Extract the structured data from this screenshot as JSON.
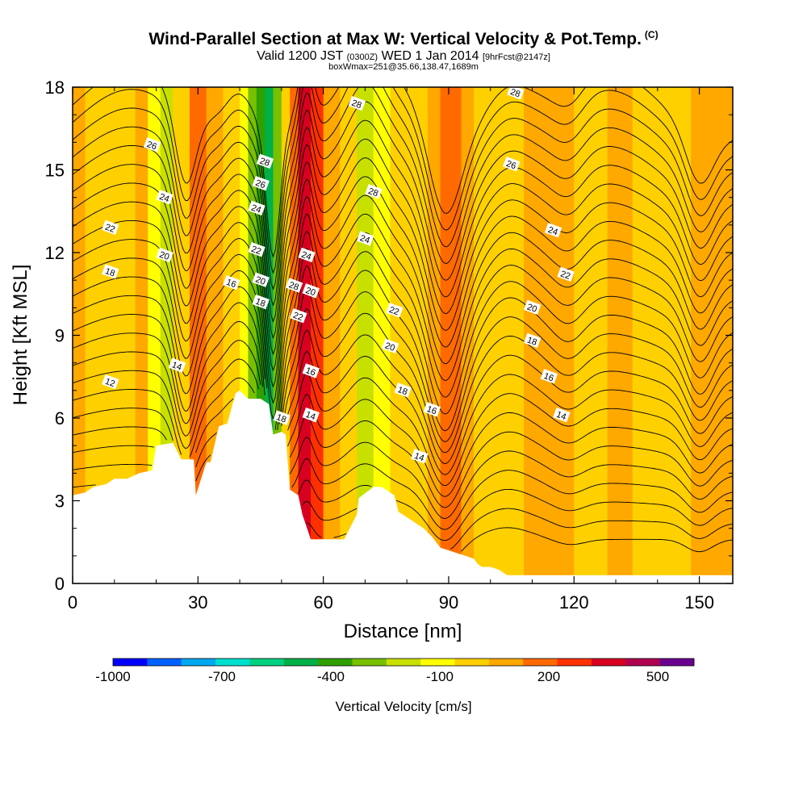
{
  "header": {
    "title": "Wind-Parallel Section at Max W: Vertical Velocity & Pot.Temp.",
    "copyright": "(C)",
    "valid_prefix": "Valid 1200 JST",
    "valid_utc": "(0300Z)",
    "valid_date": "WED 1 Jan 2014",
    "forecast": "[9hrFcst@2147z]",
    "boxwmax": "boxWmax=251@35.66,138.47,1689m"
  },
  "chart_data": {
    "type": "heatmap",
    "xlabel": "Distance [nm]",
    "ylabel": "Height [Kft MSL]",
    "xlim": [
      0,
      158
    ],
    "ylim": [
      0,
      18
    ],
    "xticks": [
      0,
      30,
      60,
      90,
      120,
      150
    ],
    "yticks": [
      0,
      3,
      6,
      9,
      12,
      15,
      18
    ],
    "colorbar": {
      "label": "Vertical Velocity [cm/s]",
      "tick_labels": [
        "-1000",
        "-700",
        "-400",
        "-100",
        "200",
        "500"
      ],
      "tick_values": [
        -1000,
        -700,
        -400,
        -100,
        200,
        500
      ],
      "bins": [
        -1000,
        -900,
        -800,
        -700,
        -600,
        -500,
        -400,
        -300,
        -200,
        -100,
        0,
        100,
        200,
        300,
        400,
        500,
        600
      ],
      "colors": [
        "#0000ff",
        "#0060ff",
        "#00a8f0",
        "#00e0d0",
        "#00d080",
        "#00b048",
        "#30a000",
        "#78c000",
        "#c8e000",
        "#ffff00",
        "#ffd000",
        "#ffa800",
        "#ff6a00",
        "#ff3000",
        "#d80020",
        "#b00050",
        "#6a0090"
      ]
    },
    "terrain": {
      "x": [
        0,
        3,
        5,
        8,
        10,
        13,
        16,
        19,
        20,
        24,
        26,
        29,
        29.5,
        32,
        33,
        35,
        37,
        39,
        40,
        42,
        43,
        45,
        47,
        48,
        50,
        51,
        52,
        54,
        55,
        57,
        57.5,
        61,
        65,
        68,
        68.5,
        72,
        74,
        77,
        78,
        80,
        82,
        84,
        86,
        88,
        92,
        94,
        96,
        97,
        98,
        100,
        102,
        104,
        106,
        108,
        110,
        112,
        114,
        116,
        118,
        120,
        122,
        124,
        126,
        128,
        130,
        132,
        134,
        136,
        140,
        144,
        148,
        152,
        156,
        158
      ],
      "y": [
        3.2,
        3.3,
        3.5,
        3.6,
        3.8,
        3.8,
        4.0,
        4.1,
        5.0,
        5.1,
        4.5,
        4.5,
        3.2,
        4.4,
        4.4,
        5.7,
        5.8,
        6.9,
        7.0,
        6.7,
        6.7,
        6.7,
        6.5,
        5.4,
        5.5,
        5.4,
        3.4,
        3.2,
        2.5,
        1.6,
        1.6,
        1.6,
        1.6,
        2.5,
        3.1,
        3.5,
        3.5,
        3.2,
        2.6,
        2.4,
        2.2,
        2.0,
        1.7,
        1.3,
        1.1,
        1.0,
        0.9,
        0.7,
        0.6,
        0.6,
        0.5,
        0.3,
        0.3,
        0.3,
        0.3,
        0.3,
        0.3,
        0.3,
        0.3,
        0.3,
        0.3,
        0.3,
        0.3,
        0.3,
        0.3,
        0.3,
        0.3,
        0.3,
        0.3,
        0.3,
        0.3,
        0.3,
        0.3,
        0.3
      ]
    },
    "vertical_velocity_bands": [
      {
        "x_start": 0,
        "x_end": 3,
        "value": 150
      },
      {
        "x_start": 3,
        "x_end": 15,
        "value": 50
      },
      {
        "x_start": 15,
        "x_end": 18,
        "value": 120
      },
      {
        "x_start": 18,
        "x_end": 21,
        "value": -50
      },
      {
        "x_start": 21,
        "x_end": 24,
        "value": -150
      },
      {
        "x_start": 24,
        "x_end": 28,
        "value": 50
      },
      {
        "x_start": 28,
        "x_end": 32,
        "value": 250
      },
      {
        "x_start": 32,
        "x_end": 36,
        "value": 120
      },
      {
        "x_start": 36,
        "x_end": 40,
        "value": 50
      },
      {
        "x_start": 40,
        "x_end": 42,
        "value": -50
      },
      {
        "x_start": 42,
        "x_end": 44,
        "value": -250
      },
      {
        "x_start": 44,
        "x_end": 46,
        "value": -350
      },
      {
        "x_start": 46,
        "x_end": 48,
        "value": -450
      },
      {
        "x_start": 48,
        "x_end": 50,
        "value": -250
      },
      {
        "x_start": 50,
        "x_end": 52,
        "value": 50
      },
      {
        "x_start": 52,
        "x_end": 54,
        "value": 250
      },
      {
        "x_start": 54,
        "x_end": 57,
        "value": 450
      },
      {
        "x_start": 57,
        "x_end": 60,
        "value": 350
      },
      {
        "x_start": 60,
        "x_end": 64,
        "value": 150
      },
      {
        "x_start": 64,
        "x_end": 68,
        "value": 50
      },
      {
        "x_start": 68,
        "x_end": 72,
        "value": -150
      },
      {
        "x_start": 72,
        "x_end": 76,
        "value": -50
      },
      {
        "x_start": 76,
        "x_end": 85,
        "value": 50
      },
      {
        "x_start": 85,
        "x_end": 88,
        "value": 150
      },
      {
        "x_start": 88,
        "x_end": 93,
        "value": 250
      },
      {
        "x_start": 93,
        "x_end": 96,
        "value": 150
      },
      {
        "x_start": 96,
        "x_end": 108,
        "value": 50
      },
      {
        "x_start": 108,
        "x_end": 120,
        "value": 150
      },
      {
        "x_start": 120,
        "x_end": 128,
        "value": 50
      },
      {
        "x_start": 128,
        "x_end": 134,
        "value": 150
      },
      {
        "x_start": 134,
        "x_end": 148,
        "value": 50
      },
      {
        "x_start": 148,
        "x_end": 158,
        "value": 150
      }
    ],
    "potential_temperature_contours": {
      "levels": [
        12,
        14,
        16,
        18,
        20,
        22,
        24,
        26,
        28
      ],
      "labels": [
        {
          "text": "12",
          "x": 9,
          "y": 7.3
        },
        {
          "text": "14",
          "x": 25,
          "y": 7.9
        },
        {
          "text": "16",
          "x": 38,
          "y": 10.9
        },
        {
          "text": "18",
          "x": 9,
          "y": 11.3
        },
        {
          "text": "20",
          "x": 22,
          "y": 11.9
        },
        {
          "text": "22",
          "x": 9,
          "y": 12.9
        },
        {
          "text": "24",
          "x": 22,
          "y": 14.0
        },
        {
          "text": "26",
          "x": 19,
          "y": 15.9
        },
        {
          "text": "28",
          "x": 46,
          "y": 15.3
        },
        {
          "text": "26",
          "x": 45,
          "y": 14.5
        },
        {
          "text": "24",
          "x": 44,
          "y": 13.6
        },
        {
          "text": "22",
          "x": 44,
          "y": 12.1
        },
        {
          "text": "20",
          "x": 45,
          "y": 11.0
        },
        {
          "text": "18",
          "x": 45,
          "y": 10.2
        },
        {
          "text": "18",
          "x": 50,
          "y": 6.0
        },
        {
          "text": "28",
          "x": 53,
          "y": 10.8
        },
        {
          "text": "24",
          "x": 56,
          "y": 11.9
        },
        {
          "text": "20",
          "x": 57,
          "y": 10.6
        },
        {
          "text": "22",
          "x": 54,
          "y": 9.7
        },
        {
          "text": "16",
          "x": 57,
          "y": 7.7
        },
        {
          "text": "14",
          "x": 57,
          "y": 6.1
        },
        {
          "text": "28",
          "x": 68,
          "y": 17.4
        },
        {
          "text": "28",
          "x": 72,
          "y": 14.2
        },
        {
          "text": "24",
          "x": 70,
          "y": 12.5
        },
        {
          "text": "22",
          "x": 77,
          "y": 9.9
        },
        {
          "text": "20",
          "x": 76,
          "y": 8.6
        },
        {
          "text": "18",
          "x": 79,
          "y": 7.0
        },
        {
          "text": "16",
          "x": 86,
          "y": 6.3
        },
        {
          "text": "14",
          "x": 83,
          "y": 4.6
        },
        {
          "text": "28",
          "x": 106,
          "y": 17.8
        },
        {
          "text": "26",
          "x": 105,
          "y": 15.2
        },
        {
          "text": "24",
          "x": 115,
          "y": 12.8
        },
        {
          "text": "22",
          "x": 118,
          "y": 11.2
        },
        {
          "text": "20",
          "x": 110,
          "y": 10.0
        },
        {
          "text": "18",
          "x": 110,
          "y": 8.8
        },
        {
          "text": "16",
          "x": 114,
          "y": 7.5
        },
        {
          "text": "14",
          "x": 117,
          "y": 6.1
        }
      ]
    }
  }
}
